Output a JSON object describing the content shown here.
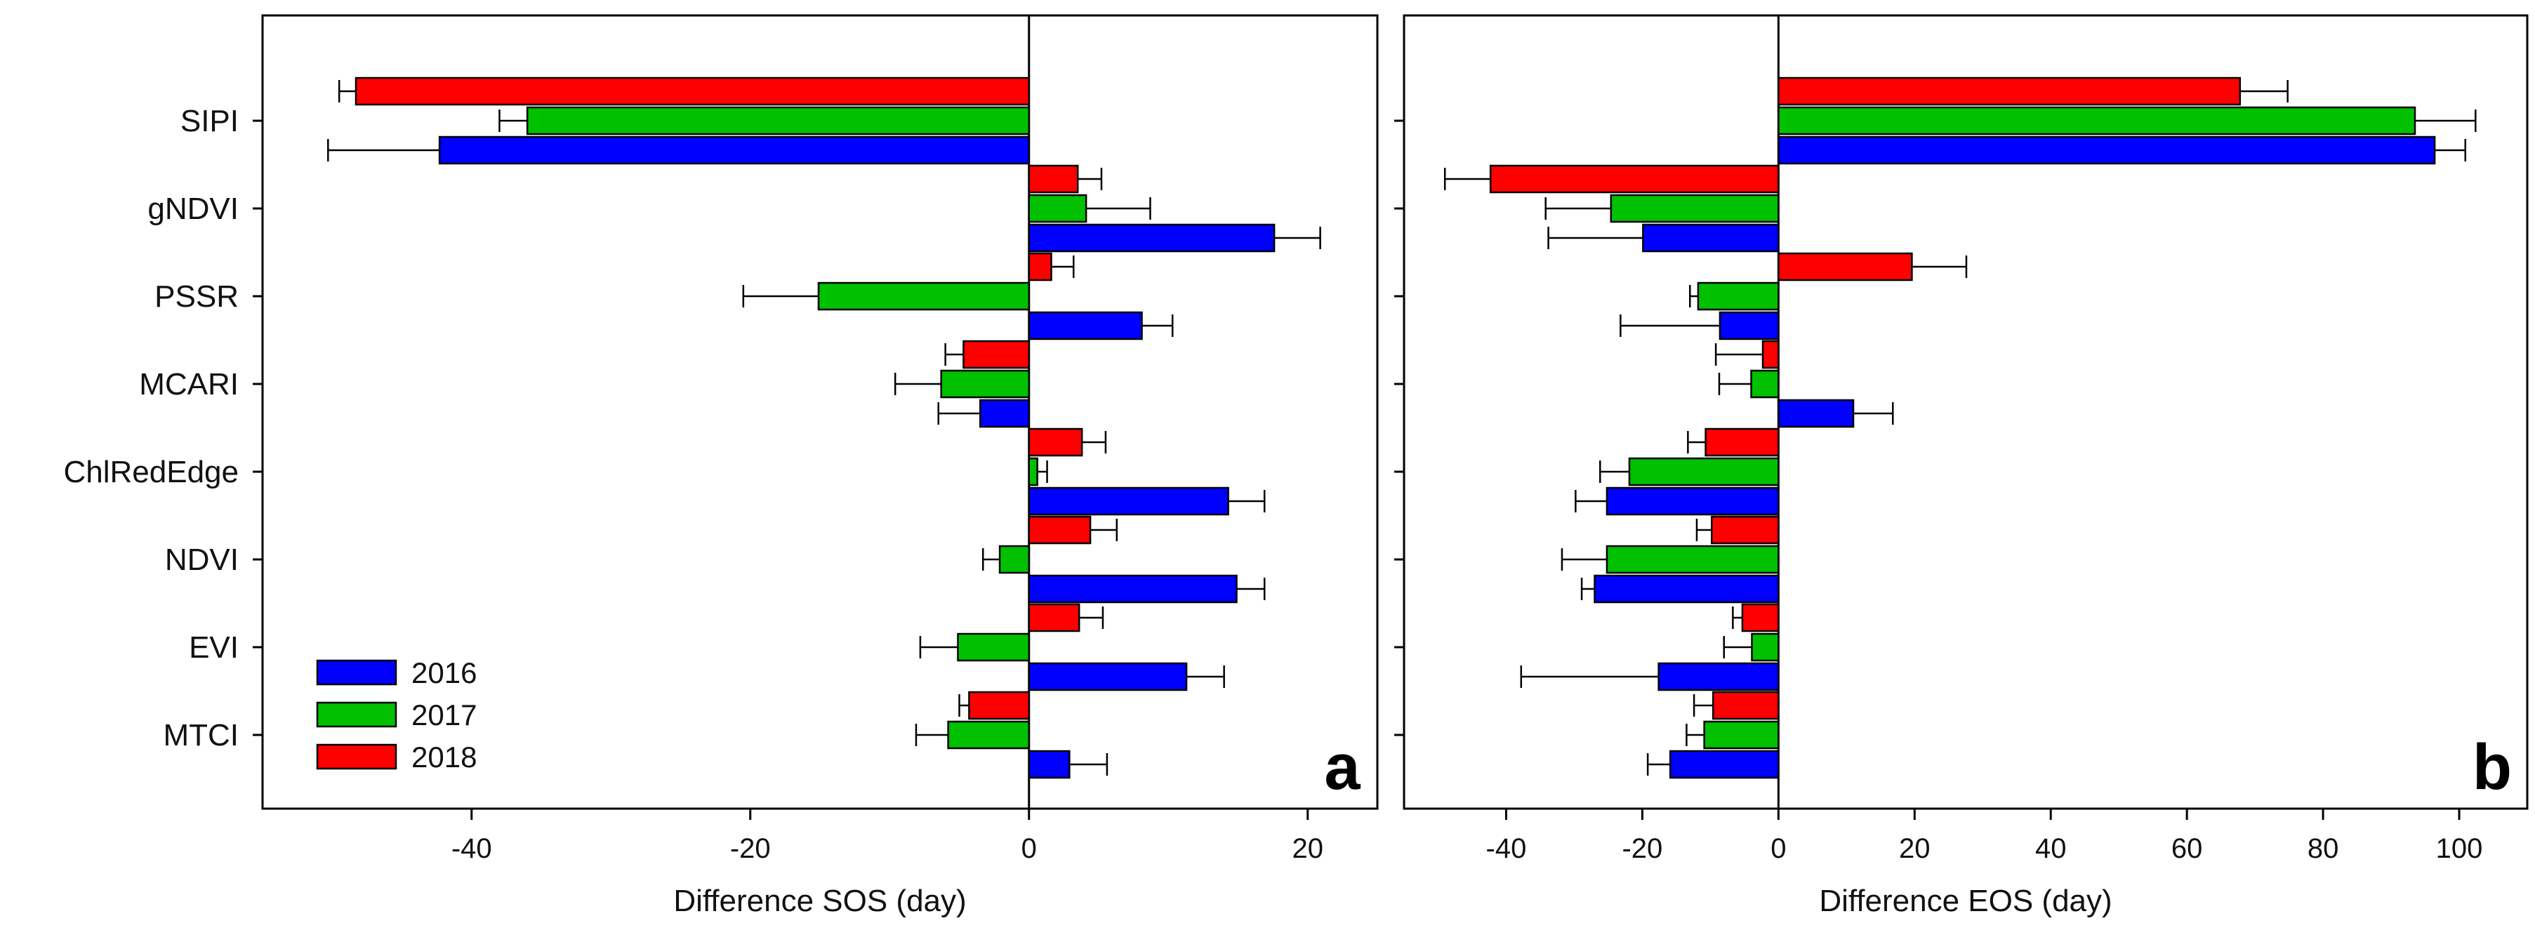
{
  "colors": {
    "2016": "#0000ff",
    "2017": "#00c000",
    "2018": "#ff0000"
  },
  "legend": {
    "items": [
      "2016",
      "2017",
      "2018"
    ]
  },
  "chart_data": [
    {
      "type": "bar",
      "orientation": "horizontal",
      "panel_letter": "a",
      "title": "",
      "xlabel": "Difference SOS (day)",
      "ylabel": "",
      "xlim": [
        -55,
        25
      ],
      "xticks": [
        -40,
        -20,
        0,
        20
      ],
      "xtick_labels": [
        "-40",
        "-20",
        "0",
        "20"
      ],
      "categories": [
        "SIPI",
        "gNDVI",
        "PSSR",
        "MCARI",
        "ChlRedEdge",
        "NDVI",
        "EVI",
        "MTCI"
      ],
      "legend_position": "bottom-left",
      "series": [
        {
          "name": "2016",
          "values": [
            -42.3,
            17.6,
            8.1,
            -3.5,
            14.3,
            14.9,
            11.3,
            2.9
          ],
          "errors": [
            8.0,
            3.3,
            2.2,
            3.0,
            2.6,
            2.0,
            2.7,
            2.7
          ]
        },
        {
          "name": "2017",
          "values": [
            -36.0,
            4.1,
            -15.1,
            -6.3,
            0.6,
            -2.1,
            -5.1,
            -5.8
          ],
          "errors": [
            2.0,
            4.6,
            5.4,
            3.3,
            0.7,
            1.2,
            2.7,
            2.3
          ]
        },
        {
          "name": "2018",
          "values": [
            -48.3,
            3.5,
            1.6,
            -4.7,
            3.8,
            4.4,
            3.6,
            -4.3
          ],
          "errors": [
            1.2,
            1.7,
            1.6,
            1.3,
            1.7,
            1.9,
            1.7,
            0.7
          ]
        }
      ]
    },
    {
      "type": "bar",
      "orientation": "horizontal",
      "panel_letter": "b",
      "title": "",
      "xlabel": "Difference EOS (day)",
      "ylabel": "",
      "xlim": [
        -55,
        110
      ],
      "xticks": [
        -40,
        -20,
        0,
        20,
        40,
        60,
        80,
        100
      ],
      "xtick_labels": [
        "-40",
        "-20",
        "0",
        "20",
        "40",
        "60",
        "80",
        "100"
      ],
      "categories": [
        "SIPI",
        "gNDVI",
        "PSSR",
        "MCARI",
        "ChlRedEdge",
        "NDVI",
        "EVI",
        "MTCI"
      ],
      "series": [
        {
          "name": "2016",
          "values": [
            96.4,
            -19.9,
            -8.6,
            11.0,
            -25.2,
            -27.0,
            -17.6,
            -15.9
          ],
          "errors": [
            4.5,
            13.9,
            14.6,
            5.8,
            4.6,
            1.9,
            20.2,
            3.3
          ]
        },
        {
          "name": "2017",
          "values": [
            93.5,
            -24.6,
            -11.8,
            -4.0,
            -21.9,
            -25.2,
            -3.9,
            -10.9
          ],
          "errors": [
            8.9,
            9.6,
            1.2,
            4.7,
            4.3,
            6.6,
            4.1,
            2.6
          ]
        },
        {
          "name": "2018",
          "values": [
            67.8,
            -42.3,
            19.6,
            -2.3,
            -10.7,
            -9.8,
            -5.3,
            -9.6
          ],
          "errors": [
            7.0,
            6.7,
            8.0,
            6.9,
            2.6,
            2.2,
            1.4,
            2.8
          ]
        }
      ]
    }
  ]
}
